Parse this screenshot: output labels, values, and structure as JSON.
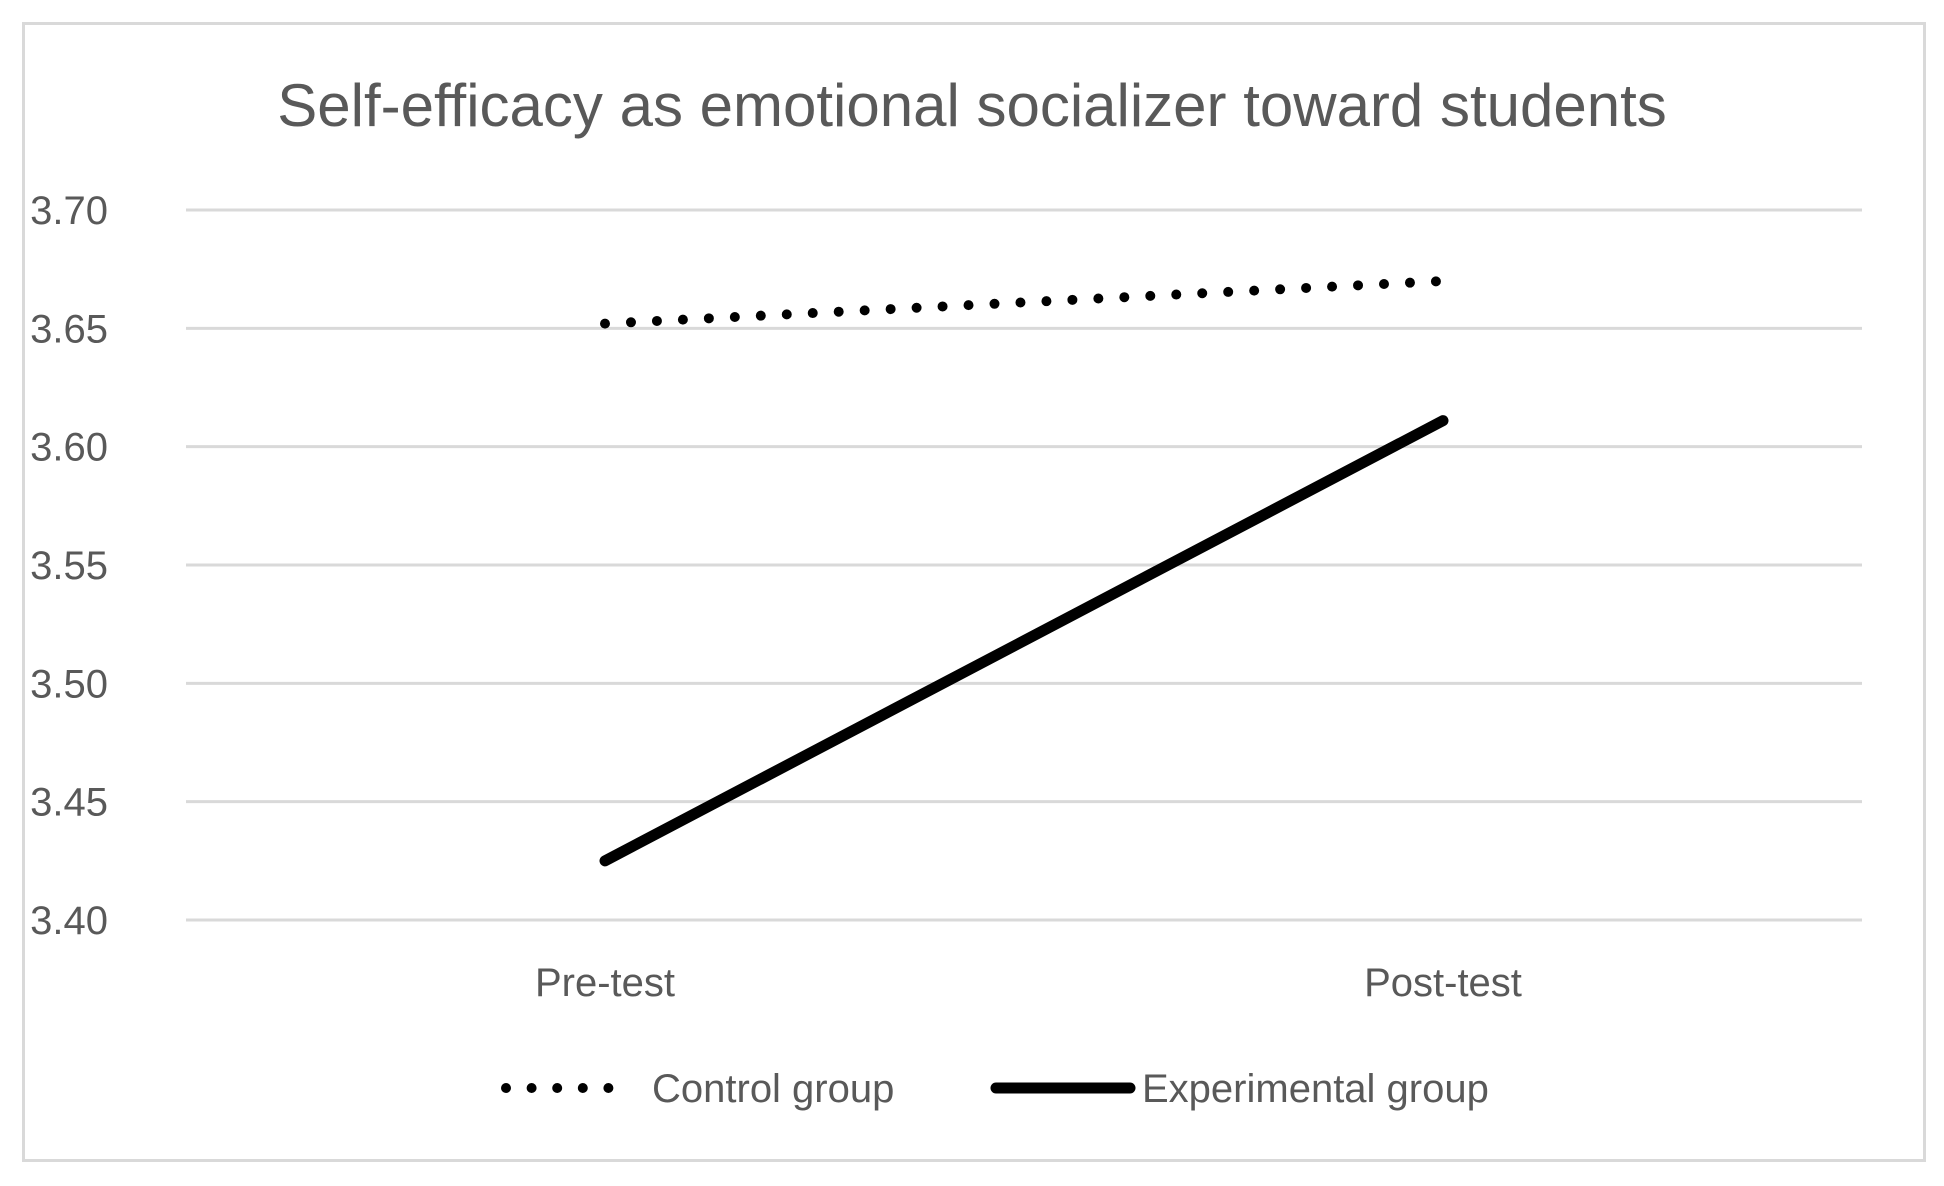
{
  "chart_data": {
    "type": "line",
    "title": "Self-efficacy as emotional socializer toward students",
    "categories": [
      "Pre-test",
      "Post-test"
    ],
    "xlabel": "",
    "ylabel": "",
    "ylim": [
      3.4,
      3.7
    ],
    "yticks": [
      "3.70",
      "3.65",
      "3.60",
      "3.55",
      "3.50",
      "3.45",
      "3.40"
    ],
    "ytick_values": [
      3.7,
      3.65,
      3.6,
      3.55,
      3.5,
      3.45,
      3.4
    ],
    "grid": true,
    "legend_position": "bottom",
    "series": [
      {
        "name": "Control group",
        "values": [
          3.652,
          3.67
        ],
        "style": "dotted",
        "color": "#000000"
      },
      {
        "name": "Experimental group",
        "values": [
          3.425,
          3.611
        ],
        "style": "solid",
        "color": "#000000"
      }
    ]
  },
  "colors": {
    "frame": "#d9d9d9",
    "gridline": "#d9d9d9",
    "text": "#595959",
    "series": "#000000"
  }
}
